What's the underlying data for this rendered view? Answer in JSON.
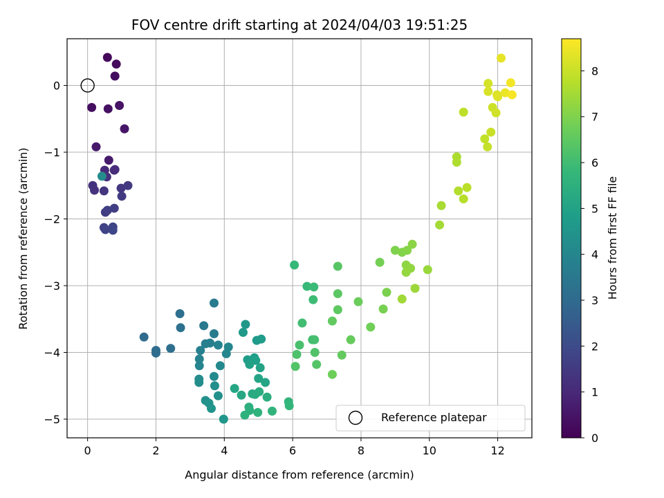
{
  "chart_data": {
    "type": "scatter",
    "title": "FOV centre drift starting at 2024/04/03 19:51:25",
    "xlabel": "Angular distance from reference (arcmin)",
    "ylabel": "Rotation from reference (arcmin)",
    "xlim": [
      -0.6,
      13.0
    ],
    "ylim": [
      -5.28,
      0.7
    ],
    "xticks": [
      0,
      2,
      4,
      6,
      8,
      10,
      12
    ],
    "yticks": [
      0,
      -1,
      -2,
      -3,
      -4,
      -5
    ],
    "grid": true,
    "legend": {
      "location": "lower-right",
      "entries": [
        "Reference platepar"
      ]
    },
    "reference_point": {
      "x": 0,
      "y": 0,
      "label": "Reference platepar"
    },
    "colorbar": {
      "label": "Hours from first FF file",
      "colormap": "viridis",
      "range": [
        0,
        8.7
      ],
      "ticks": [
        0,
        1,
        2,
        3,
        4,
        5,
        6,
        7,
        8
      ]
    },
    "colormap_stops": [
      "#440154",
      "#482878",
      "#3e4989",
      "#31688e",
      "#26828e",
      "#1f9e89",
      "#35b779",
      "#6ece58",
      "#b5de2b",
      "#fde725"
    ],
    "points": [
      [
        0.58,
        0.42,
        0.2
      ],
      [
        0.84,
        0.32,
        0.25
      ],
      [
        0.8,
        0.14,
        0.3
      ],
      [
        0.12,
        -0.33,
        0.35
      ],
      [
        0.6,
        -0.35,
        0.4
      ],
      [
        0.93,
        -0.3,
        0.45
      ],
      [
        1.08,
        -0.65,
        0.5
      ],
      [
        0.25,
        -0.92,
        0.6
      ],
      [
        0.62,
        -1.12,
        0.65
      ],
      [
        0.5,
        -1.27,
        1.0
      ],
      [
        0.78,
        -1.27,
        1.05
      ],
      [
        0.8,
        -1.26,
        1.1
      ],
      [
        0.56,
        -1.37,
        1.2
      ],
      [
        0.42,
        -1.36,
        4.2
      ],
      [
        0.15,
        -1.5,
        1.25
      ],
      [
        0.2,
        -1.57,
        1.3
      ],
      [
        0.48,
        -1.58,
        1.35
      ],
      [
        0.98,
        -1.54,
        1.4
      ],
      [
        1.18,
        -1.5,
        1.45
      ],
      [
        1.0,
        -1.66,
        1.5
      ],
      [
        0.52,
        -1.9,
        1.55
      ],
      [
        0.58,
        -1.87,
        1.6
      ],
      [
        0.78,
        -1.84,
        1.65
      ],
      [
        0.48,
        -2.13,
        1.7
      ],
      [
        0.52,
        -2.16,
        1.75
      ],
      [
        0.74,
        -2.12,
        1.8
      ],
      [
        0.74,
        -2.17,
        1.85
      ],
      [
        1.65,
        -3.77,
        3.0
      ],
      [
        2.0,
        -3.97,
        3.05
      ],
      [
        2.0,
        -4.01,
        3.1
      ],
      [
        2.43,
        -3.94,
        3.15
      ],
      [
        2.7,
        -3.42,
        3.2
      ],
      [
        2.72,
        -3.63,
        3.25
      ],
      [
        3.4,
        -3.6,
        3.55
      ],
      [
        3.7,
        -3.26,
        3.6
      ],
      [
        3.7,
        -3.72,
        3.65
      ],
      [
        3.45,
        -3.87,
        3.7
      ],
      [
        3.58,
        -3.86,
        3.75
      ],
      [
        3.3,
        -3.97,
        3.8
      ],
      [
        3.82,
        -3.89,
        3.85
      ],
      [
        3.27,
        -4.1,
        3.9
      ],
      [
        3.27,
        -4.2,
        3.95
      ],
      [
        4.12,
        -3.92,
        4.0
      ],
      [
        4.06,
        -4.02,
        4.05
      ],
      [
        3.88,
        -4.2,
        4.1
      ],
      [
        3.7,
        -4.36,
        4.15
      ],
      [
        3.26,
        -4.4,
        4.2
      ],
      [
        3.26,
        -4.45,
        4.25
      ],
      [
        3.72,
        -4.5,
        4.3
      ],
      [
        3.82,
        -4.65,
        4.35
      ],
      [
        3.45,
        -4.72,
        4.4
      ],
      [
        3.55,
        -4.76,
        4.45
      ],
      [
        3.62,
        -4.84,
        4.5
      ],
      [
        3.98,
        -5.0,
        4.55
      ],
      [
        4.62,
        -3.58,
        4.6
      ],
      [
        4.55,
        -3.7,
        4.65
      ],
      [
        4.95,
        -3.82,
        4.7
      ],
      [
        5.08,
        -3.8,
        4.75
      ],
      [
        4.68,
        -4.11,
        4.8
      ],
      [
        4.88,
        -4.08,
        4.85
      ],
      [
        4.92,
        -4.12,
        4.9
      ],
      [
        4.74,
        -4.18,
        4.95
      ],
      [
        5.05,
        -4.23,
        5.0
      ],
      [
        5.0,
        -4.39,
        5.05
      ],
      [
        5.2,
        -4.45,
        5.1
      ],
      [
        4.3,
        -4.54,
        5.15
      ],
      [
        4.5,
        -4.64,
        5.2
      ],
      [
        4.82,
        -4.62,
        5.25
      ],
      [
        4.9,
        -4.63,
        5.3
      ],
      [
        5.02,
        -4.59,
        5.35
      ],
      [
        5.25,
        -4.67,
        5.4
      ],
      [
        4.72,
        -4.82,
        5.45
      ],
      [
        4.74,
        -4.87,
        5.5
      ],
      [
        4.6,
        -4.94,
        5.55
      ],
      [
        4.98,
        -4.9,
        5.6
      ],
      [
        5.4,
        -4.88,
        5.65
      ],
      [
        5.88,
        -4.74,
        5.7
      ],
      [
        5.9,
        -4.8,
        5.75
      ],
      [
        6.05,
        -2.69,
        5.8
      ],
      [
        6.42,
        -3.01,
        5.85
      ],
      [
        6.62,
        -3.02,
        5.9
      ],
      [
        6.6,
        -3.21,
        5.95
      ],
      [
        6.28,
        -3.56,
        6.0
      ],
      [
        6.58,
        -3.81,
        6.05
      ],
      [
        6.64,
        -3.81,
        6.1
      ],
      [
        6.2,
        -3.89,
        6.15
      ],
      [
        6.12,
        -4.03,
        6.2
      ],
      [
        6.65,
        -4.0,
        6.25
      ],
      [
        6.08,
        -4.21,
        6.3
      ],
      [
        6.7,
        -4.18,
        6.35
      ],
      [
        7.32,
        -2.71,
        6.4
      ],
      [
        7.32,
        -3.12,
        6.45
      ],
      [
        7.32,
        -3.36,
        6.5
      ],
      [
        7.16,
        -3.53,
        6.55
      ],
      [
        7.44,
        -4.04,
        6.6
      ],
      [
        7.7,
        -3.81,
        6.65
      ],
      [
        7.92,
        -3.24,
        6.7
      ],
      [
        7.16,
        -4.33,
        6.75
      ],
      [
        8.28,
        -3.62,
        6.8
      ],
      [
        8.55,
        -2.65,
        6.85
      ],
      [
        8.65,
        -3.35,
        6.9
      ],
      [
        8.75,
        -3.1,
        6.95
      ],
      [
        9.0,
        -2.47,
        7.0
      ],
      [
        9.2,
        -2.5,
        7.05
      ],
      [
        9.35,
        -2.47,
        7.1
      ],
      [
        9.5,
        -2.38,
        7.15
      ],
      [
        9.32,
        -2.69,
        7.2
      ],
      [
        9.45,
        -2.74,
        7.25
      ],
      [
        9.32,
        -2.8,
        7.3
      ],
      [
        9.95,
        -2.76,
        7.35
      ],
      [
        9.58,
        -3.04,
        7.4
      ],
      [
        9.2,
        -3.2,
        7.45
      ],
      [
        10.3,
        -2.09,
        7.5
      ],
      [
        10.35,
        -1.8,
        7.55
      ],
      [
        10.8,
        -1.07,
        7.6
      ],
      [
        10.8,
        -1.15,
        7.65
      ],
      [
        10.85,
        -1.58,
        7.7
      ],
      [
        11.0,
        -1.7,
        7.75
      ],
      [
        11.1,
        -1.53,
        7.8
      ],
      [
        11.0,
        -0.4,
        7.85
      ],
      [
        11.62,
        -0.8,
        7.9
      ],
      [
        11.7,
        -0.92,
        7.95
      ],
      [
        11.8,
        -0.7,
        8.0
      ],
      [
        11.85,
        -0.33,
        8.05
      ],
      [
        11.95,
        -0.41,
        8.1
      ],
      [
        11.72,
        0.03,
        8.15
      ],
      [
        11.72,
        -0.09,
        8.2
      ],
      [
        11.98,
        -0.14,
        8.25
      ],
      [
        12.0,
        -0.17,
        8.3
      ],
      [
        12.1,
        0.41,
        8.4
      ],
      [
        12.22,
        -0.11,
        8.45
      ],
      [
        12.38,
        0.04,
        8.55
      ],
      [
        12.42,
        -0.14,
        8.6
      ]
    ]
  }
}
